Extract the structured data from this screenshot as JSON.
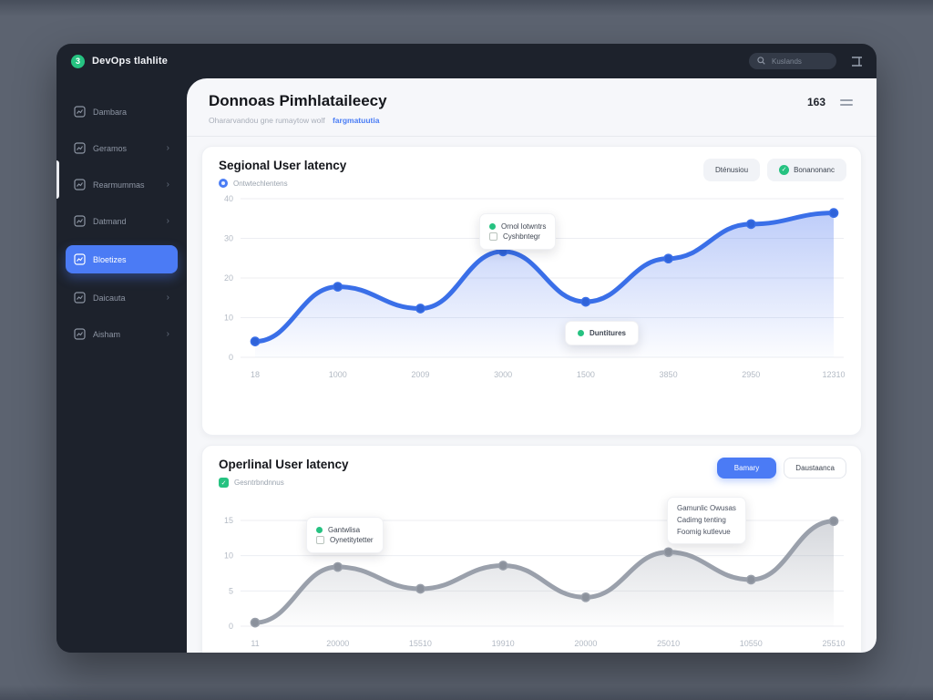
{
  "app": {
    "brand": "DevOps tlahlite",
    "logo_glyph": "3",
    "search_placeholder": "Kuslands",
    "header": {
      "title": "Donnoas Pimhlataileecy",
      "subtitle": "Ohararvandou gne rumaytow wolf",
      "subtitle_link": "fargmatuutia",
      "count": "163"
    }
  },
  "sidebar": {
    "items": [
      {
        "label": "Dambara",
        "icon": "dashboard-icon",
        "chevron": false,
        "active": false
      },
      {
        "label": "Geramos",
        "icon": "servers-icon",
        "chevron": true,
        "active": false
      },
      {
        "label": "Rearmummas",
        "icon": "metrics-icon",
        "chevron": true,
        "active": false
      },
      {
        "label": "Datmand",
        "icon": "network-icon",
        "chevron": true,
        "active": false
      },
      {
        "label": "Bloetizes",
        "icon": "reports-icon",
        "chevron": false,
        "active": true
      },
      {
        "label": "Daicauta",
        "icon": "database-icon",
        "chevron": true,
        "active": false
      },
      {
        "label": "Aisham",
        "icon": "feedback-icon",
        "chevron": true,
        "active": false
      }
    ]
  },
  "card1": {
    "title": "Segional User latency",
    "legend": "Ontwtechlentens",
    "button1": "Dténusiou",
    "button2": "Bonanonanc",
    "tooltip_row1": "Ornol lotwntrs",
    "tooltip_row2": "Cyshbntegr",
    "badge": "Duntitures"
  },
  "card2": {
    "title": "Operlinal User latency",
    "legend": "Gesntrbndnnus",
    "button1": "Bamary",
    "button2": "Daustaanca",
    "tooltip_row1": "Gantwlisa",
    "tooltip_row2": "Oynetitytetter",
    "tooltip2_line1": "Gamunlic Owusas",
    "tooltip2_line2": "Cadimg tenting",
    "tooltip2_line3": "Foomig kutlevue"
  },
  "chart_data": [
    {
      "type": "area",
      "title": "Segional User latency",
      "legend": "Ontwtechlentens",
      "categories": [
        "18",
        "1000",
        "2009",
        "3000",
        "1500",
        "3850",
        "2950",
        "12310"
      ],
      "values": [
        4,
        17.8,
        12.3,
        26.7,
        14,
        24.9,
        33.6,
        36.4
      ],
      "yticks": [
        40,
        30,
        20,
        10,
        0
      ],
      "ylim": [
        0,
        40
      ],
      "grid": true,
      "legend_position": "top-left",
      "line_color": "#3a6fe8",
      "point_color": "#2f63d9",
      "fill_color": "#5c82f0"
    },
    {
      "type": "area",
      "title": "Operlinal User latency",
      "legend": "Gesntrbndnnus",
      "categories": [
        "11",
        "20000",
        "15510",
        "19910",
        "20000",
        "25010",
        "10550",
        "25510"
      ],
      "values": [
        0.5,
        8.4,
        5.3,
        8.6,
        4.1,
        10.5,
        6.6,
        14.9
      ],
      "yticks": [
        15,
        10,
        5,
        0
      ],
      "ylim": [
        0,
        15
      ],
      "grid": true,
      "legend_position": "top-left",
      "line_color": "#9aa0ab",
      "point_color": "#8b919c",
      "fill_color": "#969ca8"
    }
  ]
}
